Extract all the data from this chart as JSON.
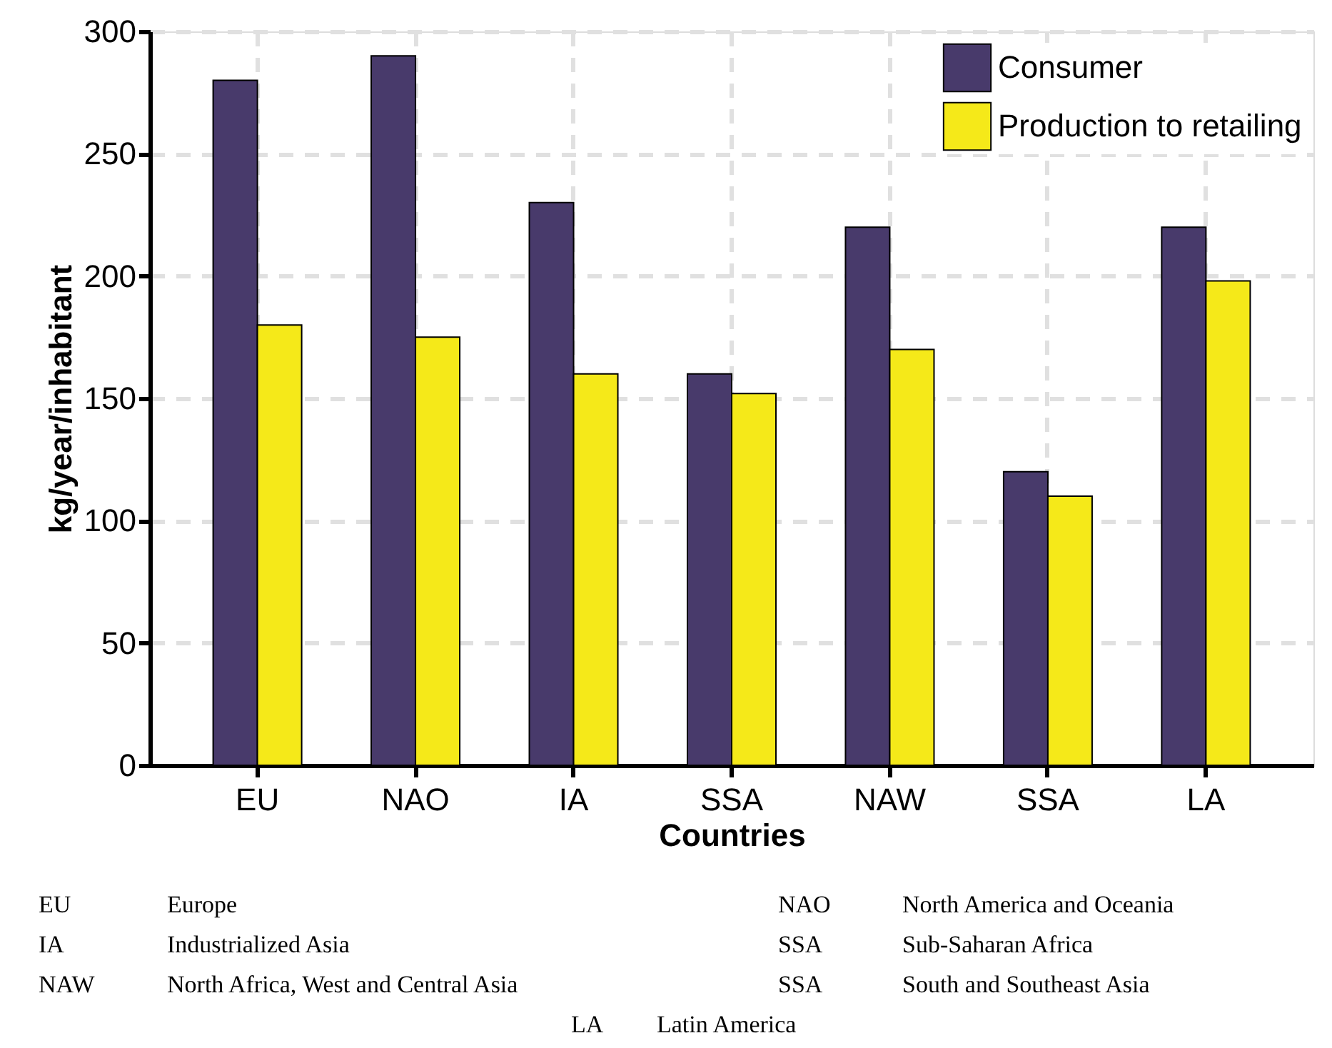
{
  "chart_data": {
    "type": "bar",
    "xlabel": "Countries",
    "ylabel": "kg/year/inhabitant",
    "categories": [
      "EU",
      "NAO",
      "IA",
      "SSA",
      "NAW",
      "SSA",
      "LA"
    ],
    "series": [
      {
        "name": "Consumer",
        "color": "#483a6b",
        "values": [
          280,
          290,
          230,
          160,
          220,
          120,
          220
        ]
      },
      {
        "name": "Production to retailing",
        "color": "#f5e919",
        "values": [
          180,
          175,
          160,
          152,
          170,
          110,
          198
        ]
      }
    ],
    "ylim": [
      0,
      300
    ],
    "yticks": [
      0,
      50,
      100,
      150,
      200,
      250,
      300
    ],
    "grid": true,
    "legend": "top right",
    "annotations": [
      "EU",
      "Europe",
      "NAO",
      "North America and Oceania",
      "IA",
      "Industrialized Asia",
      "SSA",
      "Sub-Saharan Africa",
      "NAW",
      "North Africa, West and Central Asia",
      "SSA",
      "South and Southeast Asia",
      "LA",
      "Latin America"
    ]
  }
}
